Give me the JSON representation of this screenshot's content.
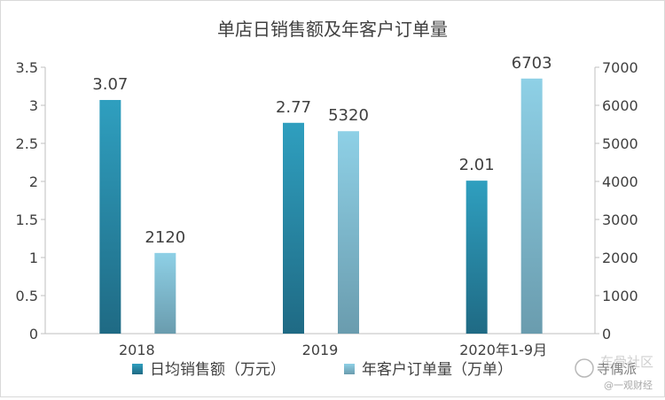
{
  "chart_data": {
    "type": "bar",
    "title": "单店日销售额及年客户订单量",
    "categories": [
      "2018",
      "2019",
      "2020年1-9月"
    ],
    "series": [
      {
        "name": "日均销售额（万元）",
        "axis": "left",
        "values": [
          3.07,
          2.77,
          2.01
        ],
        "labels": [
          "3.07",
          "2.77",
          "2.01"
        ],
        "color_top": "#2f9fbf",
        "color_bottom": "#1f6a84"
      },
      {
        "name": "年客户订单量（万单）",
        "axis": "right",
        "values": [
          2120,
          5320,
          6703
        ],
        "labels": [
          "2120",
          "5320",
          "6703"
        ],
        "color_top": "#8ed0e6",
        "color_bottom": "#6a9cae"
      }
    ],
    "y_left": {
      "min": 0,
      "max": 3.5,
      "ticks": [
        0,
        0.5,
        1,
        1.5,
        2,
        2.5,
        3,
        3.5
      ],
      "tick_labels": [
        "0",
        "0.5",
        "1",
        "1.5",
        "2",
        "2.5",
        "3",
        "3.5"
      ]
    },
    "y_right": {
      "min": 0,
      "max": 7000,
      "ticks": [
        0,
        1000,
        2000,
        3000,
        4000,
        5000,
        6000,
        7000
      ],
      "tick_labels": [
        "0",
        "1000",
        "2000",
        "3000",
        "4000",
        "5000",
        "6000",
        "7000"
      ]
    },
    "grid": false,
    "legend": "bottom"
  },
  "watermark": {
    "line1": "车骨社区",
    "line2": "@一观财经",
    "brand": "寺偶派"
  }
}
